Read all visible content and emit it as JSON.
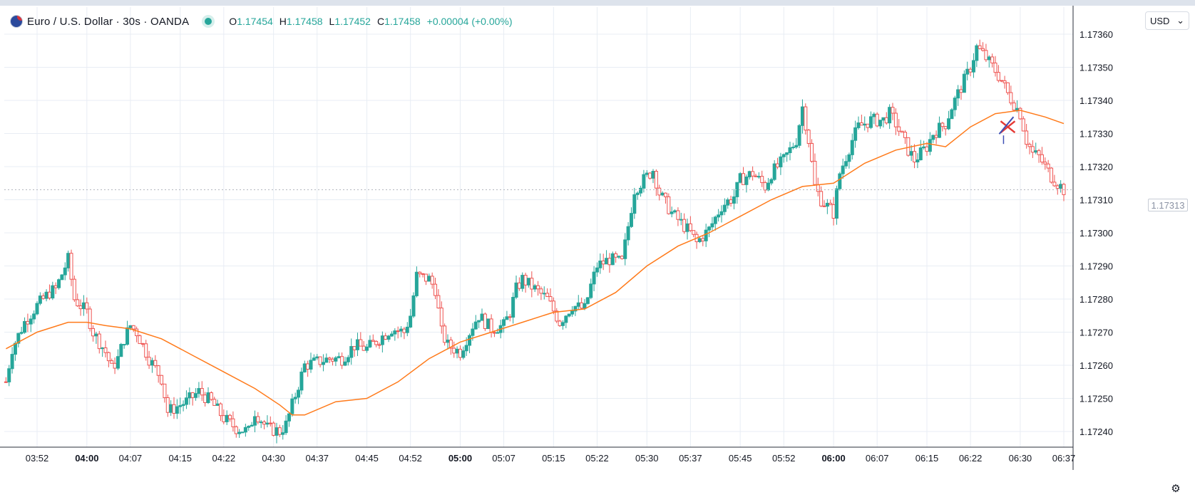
{
  "header": {
    "symbol": "Euro / U.S. Dollar · 30s · OANDA",
    "ohlc": {
      "o_label": "O",
      "o": "1.17454",
      "h_label": "H",
      "h": "1.17458",
      "l_label": "L",
      "l": "1.17452",
      "c_label": "C",
      "c": "1.17458",
      "change": "+0.00004 (+0.00%)"
    },
    "currency": "USD",
    "status_color": "#26a69a"
  },
  "last_price_label": "1.17313",
  "colors": {
    "up": "#26a69a",
    "down": "#ef5350",
    "ma": "#ff7a1a",
    "grid": "#e8edf4"
  },
  "chart_data": {
    "type": "candlestick",
    "symbol": "EURUSD",
    "interval": "30s",
    "ylim": [
      1.17236,
      1.17362
    ],
    "xlim": [
      "03:47",
      "06:37"
    ],
    "y_ticks": [
      "1.17360",
      "1.17350",
      "1.17340",
      "1.17330",
      "1.17320",
      "1.17310",
      "1.17300",
      "1.17290",
      "1.17280",
      "1.17270",
      "1.17260",
      "1.17250",
      "1.17240"
    ],
    "x_ticks": [
      {
        "label": "03:52",
        "t": "03:52",
        "bold": false
      },
      {
        "label": "04:00",
        "t": "04:00",
        "bold": true
      },
      {
        "label": "04:07",
        "t": "04:07",
        "bold": false
      },
      {
        "label": "04:15",
        "t": "04:15",
        "bold": false
      },
      {
        "label": "04:22",
        "t": "04:22",
        "bold": false
      },
      {
        "label": "04:30",
        "t": "04:30",
        "bold": false
      },
      {
        "label": "04:37",
        "t": "04:37",
        "bold": false
      },
      {
        "label": "04:45",
        "t": "04:45",
        "bold": false
      },
      {
        "label": "04:52",
        "t": "04:52",
        "bold": false
      },
      {
        "label": "05:00",
        "t": "05:00",
        "bold": true
      },
      {
        "label": "05:07",
        "t": "05:07",
        "bold": false
      },
      {
        "label": "05:15",
        "t": "05:15",
        "bold": false
      },
      {
        "label": "05:22",
        "t": "05:22",
        "bold": false
      },
      {
        "label": "05:30",
        "t": "05:30",
        "bold": false
      },
      {
        "label": "05:37",
        "t": "05:37",
        "bold": false
      },
      {
        "label": "05:45",
        "t": "05:45",
        "bold": false
      },
      {
        "label": "05:52",
        "t": "05:52",
        "bold": false
      },
      {
        "label": "06:00",
        "t": "06:00",
        "bold": true
      },
      {
        "label": "06:07",
        "t": "06:07",
        "bold": false
      },
      {
        "label": "06:15",
        "t": "06:15",
        "bold": false
      },
      {
        "label": "06:22",
        "t": "06:22",
        "bold": false
      },
      {
        "label": "06:30",
        "t": "06:30",
        "bold": false
      },
      {
        "label": "06:37",
        "t": "06:37",
        "bold": false
      }
    ],
    "price_path": [
      [
        "03:47",
        1.17255
      ],
      [
        "03:48",
        1.17265
      ],
      [
        "03:50",
        1.17273
      ],
      [
        "03:52",
        1.17278
      ],
      [
        "03:54",
        1.17282
      ],
      [
        "03:55",
        1.17283
      ],
      [
        "03:57",
        1.17292
      ],
      [
        "03:58",
        1.1728
      ],
      [
        "04:00",
        1.17276
      ],
      [
        "04:01",
        1.1727
      ],
      [
        "04:03",
        1.17264
      ],
      [
        "04:04",
        1.17259
      ],
      [
        "04:05",
        1.17262
      ],
      [
        "04:06",
        1.17268
      ],
      [
        "04:07",
        1.17272
      ],
      [
        "04:08",
        1.1727
      ],
      [
        "04:10",
        1.17262
      ],
      [
        "04:12",
        1.17256
      ],
      [
        "04:13",
        1.17246
      ],
      [
        "04:14",
        1.17247
      ],
      [
        "04:16",
        1.17249
      ],
      [
        "04:18",
        1.17252
      ],
      [
        "04:20",
        1.17249
      ],
      [
        "04:22",
        1.17244
      ],
      [
        "04:24",
        1.17241
      ],
      [
        "04:26",
        1.1724
      ],
      [
        "04:27",
        1.17246
      ],
      [
        "04:29",
        1.17241
      ],
      [
        "04:31",
        1.1724
      ],
      [
        "04:32",
        1.17242
      ],
      [
        "04:34",
        1.17254
      ],
      [
        "04:35",
        1.1726
      ],
      [
        "04:37",
        1.17261
      ],
      [
        "04:39",
        1.17262
      ],
      [
        "04:41",
        1.17262
      ],
      [
        "04:43",
        1.17266
      ],
      [
        "04:45",
        1.17265
      ],
      [
        "04:47",
        1.17268
      ],
      [
        "04:49",
        1.17271
      ],
      [
        "04:51",
        1.1727
      ],
      [
        "04:52",
        1.17275
      ],
      [
        "04:53",
        1.17287
      ],
      [
        "04:55",
        1.17286
      ],
      [
        "04:56",
        1.17283
      ],
      [
        "04:57",
        1.1727
      ],
      [
        "04:58",
        1.17266
      ],
      [
        "05:00",
        1.17264
      ],
      [
        "05:02",
        1.17272
      ],
      [
        "05:03",
        1.17275
      ],
      [
        "05:05",
        1.17271
      ],
      [
        "05:07",
        1.17272
      ],
      [
        "05:08",
        1.17276
      ],
      [
        "05:09",
        1.17283
      ],
      [
        "05:10",
        1.17286
      ],
      [
        "05:12",
        1.17283
      ],
      [
        "05:14",
        1.1728
      ],
      [
        "05:16",
        1.17273
      ],
      [
        "05:18",
        1.17278
      ],
      [
        "05:20",
        1.17277
      ],
      [
        "05:21",
        1.17284
      ],
      [
        "05:22",
        1.1729
      ],
      [
        "05:24",
        1.17292
      ],
      [
        "05:26",
        1.17291
      ],
      [
        "05:27",
        1.17302
      ],
      [
        "05:28",
        1.17313
      ],
      [
        "05:29",
        1.17315
      ],
      [
        "05:31",
        1.17319
      ],
      [
        "05:32",
        1.17312
      ],
      [
        "05:34",
        1.17306
      ],
      [
        "05:36",
        1.17302
      ],
      [
        "05:37",
        1.173
      ],
      [
        "05:38",
        1.17297
      ],
      [
        "05:40",
        1.17301
      ],
      [
        "05:42",
        1.17308
      ],
      [
        "05:44",
        1.17311
      ],
      [
        "05:45",
        1.17316
      ],
      [
        "05:47",
        1.17318
      ],
      [
        "05:49",
        1.17314
      ],
      [
        "05:50",
        1.17318
      ],
      [
        "05:52",
        1.17322
      ],
      [
        "05:54",
        1.17328
      ],
      [
        "05:55",
        1.17338
      ],
      [
        "05:56",
        1.17328
      ],
      [
        "05:57",
        1.17314
      ],
      [
        "05:58",
        1.1731
      ],
      [
        "06:00",
        1.17306
      ],
      [
        "06:01",
        1.17318
      ],
      [
        "06:03",
        1.17328
      ],
      [
        "06:04",
        1.17332
      ],
      [
        "06:06",
        1.17334
      ],
      [
        "06:08",
        1.17334
      ],
      [
        "06:09",
        1.17336
      ],
      [
        "06:10",
        1.17333
      ],
      [
        "06:12",
        1.17325
      ],
      [
        "06:13",
        1.17322
      ],
      [
        "06:15",
        1.17326
      ],
      [
        "06:16",
        1.1733
      ],
      [
        "06:18",
        1.17333
      ],
      [
        "06:19",
        1.17338
      ],
      [
        "06:21",
        1.17346
      ],
      [
        "06:22",
        1.1735
      ],
      [
        "06:23",
        1.17356
      ],
      [
        "06:24",
        1.17354
      ],
      [
        "06:26",
        1.17349
      ],
      [
        "06:27",
        1.17346
      ],
      [
        "06:28",
        1.17342
      ],
      [
        "06:30",
        1.17336
      ],
      [
        "06:31",
        1.17328
      ],
      [
        "06:32",
        1.17324
      ],
      [
        "06:33",
        1.17323
      ],
      [
        "06:34",
        1.1732
      ],
      [
        "06:35",
        1.17317
      ],
      [
        "06:36",
        1.17315
      ],
      [
        "06:37",
        1.17313
      ]
    ],
    "moving_average": [
      [
        "03:47",
        1.17265
      ],
      [
        "03:52",
        1.1727
      ],
      [
        "03:57",
        1.17273
      ],
      [
        "04:00",
        1.17273
      ],
      [
        "04:03",
        1.17272
      ],
      [
        "04:07",
        1.17271
      ],
      [
        "04:12",
        1.17268
      ],
      [
        "04:17",
        1.17263
      ],
      [
        "04:22",
        1.17258
      ],
      [
        "04:27",
        1.17253
      ],
      [
        "04:31",
        1.17248
      ],
      [
        "04:33",
        1.17245
      ],
      [
        "04:35",
        1.17245
      ],
      [
        "04:40",
        1.17249
      ],
      [
        "04:45",
        1.1725
      ],
      [
        "04:50",
        1.17255
      ],
      [
        "04:55",
        1.17262
      ],
      [
        "05:00",
        1.17267
      ],
      [
        "05:05",
        1.1727
      ],
      [
        "05:10",
        1.17273
      ],
      [
        "05:15",
        1.17276
      ],
      [
        "05:20",
        1.17277
      ],
      [
        "05:25",
        1.17282
      ],
      [
        "05:30",
        1.1729
      ],
      [
        "05:35",
        1.17296
      ],
      [
        "05:40",
        1.173
      ],
      [
        "05:45",
        1.17305
      ],
      [
        "05:50",
        1.1731
      ],
      [
        "05:55",
        1.17314
      ],
      [
        "06:00",
        1.17315
      ],
      [
        "06:05",
        1.17321
      ],
      [
        "06:10",
        1.17325
      ],
      [
        "06:15",
        1.17327
      ],
      [
        "06:18",
        1.17326
      ],
      [
        "06:22",
        1.17332
      ],
      [
        "06:26",
        1.17336
      ],
      [
        "06:30",
        1.17337
      ],
      [
        "06:34",
        1.17335
      ],
      [
        "06:37",
        1.17333
      ]
    ],
    "last_price": 1.17313,
    "marker": {
      "t": "06:28",
      "price": 1.17332,
      "type": "cross"
    },
    "grid": true
  }
}
